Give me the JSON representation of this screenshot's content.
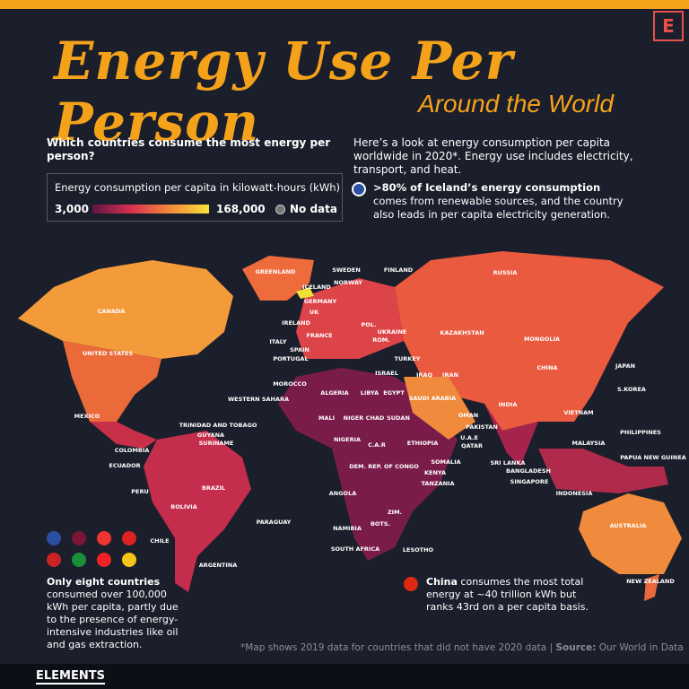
{
  "header": {
    "brand": "E",
    "title": "Energy Use Per Person",
    "subtitle": "Around the World"
  },
  "intro": {
    "question": "Which countries consume the most energy per person?",
    "text": "Here’s a look at energy consumption per capita worldwide in 2020*. Energy use includes electricity, transport, and heat."
  },
  "legend": {
    "title": "Energy consumption per capita in kilowatt-hours (kWh)",
    "min": "3,000",
    "max": "168,000",
    "no_data": "No data"
  },
  "notes": {
    "iceland": {
      "bold": ">80% of Iceland’s energy consumption",
      "text": " comes from renewable sources, and the country also leads in per capita electricity generation."
    },
    "eight": {
      "bold": "Only eight countries",
      "text": " consumed over 100,000 kWh per capita, partly due to the presence of energy-intensive industries like oil and gas extraction."
    },
    "china": {
      "bold": "China",
      "text": " consumes the most total energy at ~40 trillion kWh but ranks 43rd on a per capita basis."
    }
  },
  "map": {
    "labels": [
      "GREENLAND",
      "SWEDEN",
      "FINLAND",
      "ICELAND",
      "NORWAY",
      "CANADA",
      "GERMANY",
      "UK",
      "IRELAND",
      "POL.",
      "RUSSIA",
      "KAZAKHSTAN",
      "MONGOLIA",
      "UKRAINE",
      "ROM.",
      "FRANCE",
      "ITALY",
      "SPAIN",
      "PORTUGAL",
      "UNITED STATES",
      "TURKEY",
      "IRAN",
      "IRAQ",
      "ISRAEL",
      "JAPAN",
      "CHINA",
      "S.KOREA",
      "MOROCCO",
      "WESTERN SAHARA",
      "ALGERIA",
      "LIBYA",
      "EGYPT",
      "SAUDI ARABIA",
      "INDIA",
      "OMAN",
      "MEXICO",
      "VIETNAM",
      "MALI",
      "NIGER",
      "CHAD",
      "SUDAN",
      "PAKISTAN",
      "TRINIDAD AND TOBAGO",
      "PHILIPPINES",
      "GUYANA",
      "SURINAME",
      "U.A.E",
      "QATAR",
      "NIGERIA",
      "ETHIOPIA",
      "C.A.R",
      "MALAYSIA",
      "COLOMBIA",
      "PAPUA NEW GUINEA",
      "SOMALIA",
      "SRI LANKA",
      "ECUADOR",
      "DEM. REP. OF CONGO",
      "BANGLADESH",
      "KENYA",
      "SINGAPORE",
      "TANZANIA",
      "BRAZIL",
      "PERU",
      "INDONESIA",
      "ANGOLA",
      "BOLIVIA",
      "ZIM.",
      "PARAGUAY",
      "AUSTRALIA",
      "NAMIBIA",
      "BOTS.",
      "CHILE",
      "SOUTH AFRICA",
      "LESOTHO",
      "ARGENTINA",
      "NEW ZEALAND"
    ]
  },
  "footer": {
    "footnote": "*Map shows 2019 data for countries that did not have 2020 data",
    "source_label": "Source:",
    "source": "Our World in Data",
    "brand": "ELEMENTS"
  }
}
